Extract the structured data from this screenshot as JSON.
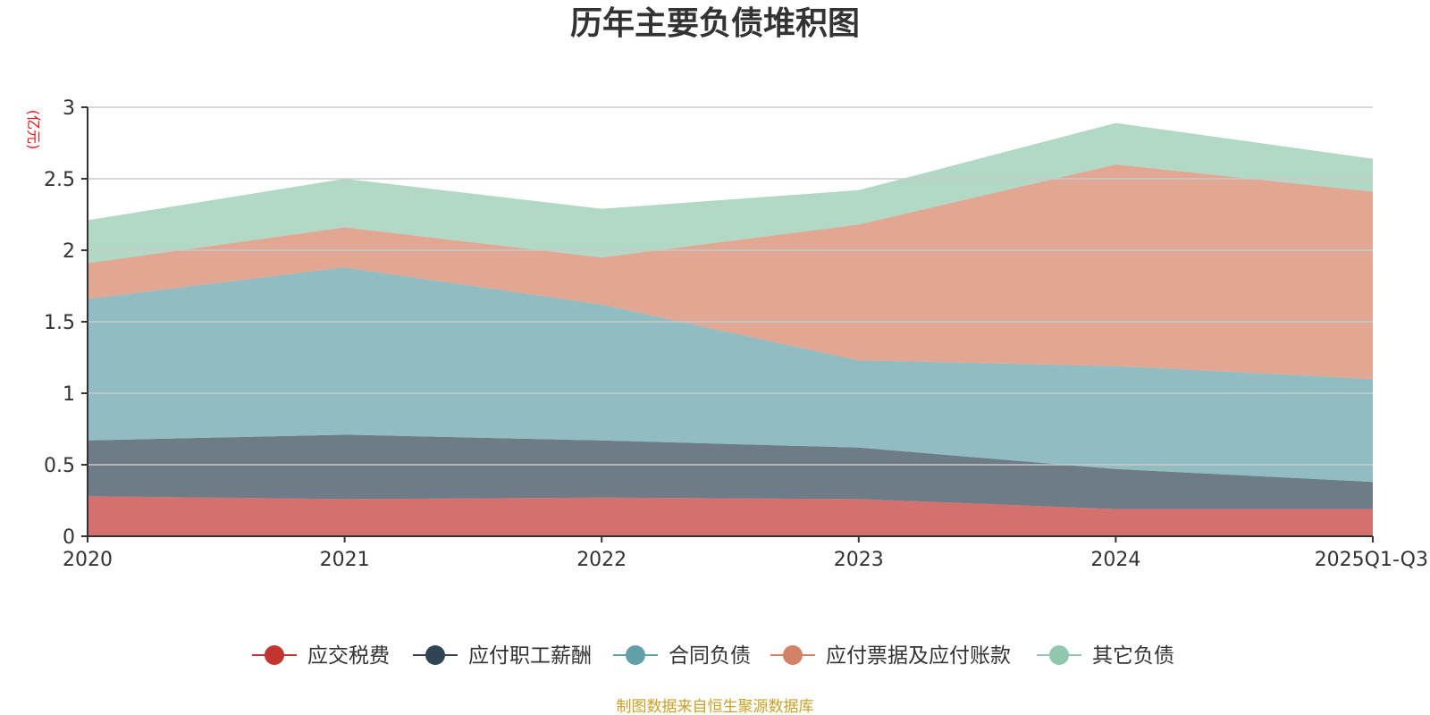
{
  "chart_data": {
    "type": "area",
    "stacked": true,
    "title": "历年主要负债堆积图",
    "unit": "(亿元)",
    "categories": [
      "2020",
      "2021",
      "2022",
      "2023",
      "2024",
      "2025Q1-Q3"
    ],
    "ylim": [
      0,
      3
    ],
    "yticks": [
      0,
      0.5,
      1,
      1.5,
      2,
      2.5,
      3
    ],
    "ytick_labels": [
      "0",
      "0.5",
      "1",
      "1.5",
      "2",
      "2.5",
      "3"
    ],
    "grid": true,
    "legend_position": "bottom",
    "series": [
      {
        "name": "应交税费",
        "color": "#c23531",
        "values": [
          0.28,
          0.26,
          0.27,
          0.26,
          0.19,
          0.19
        ]
      },
      {
        "name": "应付职工薪酬",
        "color": "#2f4554",
        "values": [
          0.39,
          0.45,
          0.4,
          0.36,
          0.28,
          0.19
        ]
      },
      {
        "name": "合同负债",
        "color": "#61a0a8",
        "values": [
          0.99,
          1.17,
          0.95,
          0.61,
          0.72,
          0.72
        ]
      },
      {
        "name": "应付票据及应付账款",
        "color": "#d48265",
        "values": [
          0.25,
          0.28,
          0.33,
          0.95,
          1.41,
          1.31
        ]
      },
      {
        "name": "其它负债",
        "color": "#91c7ae",
        "values": [
          0.3,
          0.34,
          0.34,
          0.24,
          0.29,
          0.23
        ]
      }
    ]
  },
  "footer": {
    "source": "制图数据来自恒生聚源数据库"
  }
}
